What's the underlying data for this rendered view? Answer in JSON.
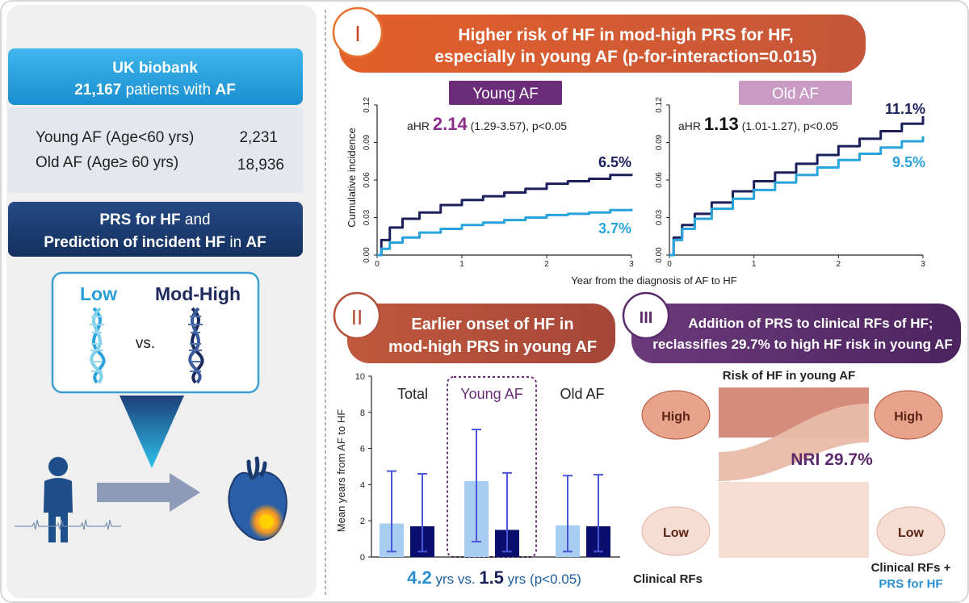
{
  "left": {
    "cohort_line1": "UK biobank",
    "cohort_count": "21,167",
    "cohort_mid": " patients with ",
    "cohort_af": "AF",
    "young_label": "Young AF (Age<60 yrs)",
    "young_n": "2,231",
    "old_label": "Old AF (Age≥ 60 yrs)",
    "old_n": "18,936",
    "prs_title_a": "PRS for HF",
    "prs_title_b": " and",
    "prs_title2_a": "Prediction of incident HF",
    "prs_title2_b": " in ",
    "prs_title2_c": "AF",
    "low": "Low",
    "modhigh": "Mod-High",
    "vs": "vs."
  },
  "section1": {
    "badge": "I",
    "title_line1": "Higher risk of HF in mod-high PRS for HF,",
    "title_line2": "especially in young AF (p-for-interaction=0.015)",
    "young_tag": "Young AF",
    "old_tag": "Old AF",
    "young_ahr_prefix": "aHR ",
    "young_ahr": "2.14",
    "young_ahr_ci": " (1.29-3.57), p<0.05",
    "old_ahr_prefix": "aHR ",
    "old_ahr": "1.13",
    "old_ahr_ci": " (1.01-1.27), p<0.05",
    "young_high_pct": "6.5%",
    "young_low_pct": "3.7%",
    "old_high_pct": "11.1%",
    "old_low_pct": "9.5%",
    "ylabel": "Cumulative incidence",
    "xlabel": "Year from the diagnosis of AF to HF"
  },
  "section2": {
    "badge": "II",
    "title_line1": "Earlier onset of HF in",
    "title_line2": "mod-high PRS in young AF",
    "group_total": "Total",
    "group_young": "Young AF",
    "group_old": "Old AF",
    "ylabel": "Mean years from AF to HF",
    "result_a": "4.2",
    "result_b": " yrs vs. ",
    "result_c": "1.5",
    "result_d": " yrs (p<0.05)"
  },
  "section3": {
    "badge": "III",
    "title_line1": "Addition of PRS to clinical RFs of HF;",
    "title_line2": "reclassifies 29.7% to high HF risk in young AF",
    "risk_title": "Risk of HF in young AF",
    "high": "High",
    "low": "Low",
    "nri": "NRI 29.7%",
    "left_label": "Clinical RFs",
    "right_label1": "Clinical RFs +",
    "right_label2": "PRS for HF"
  },
  "chart_data": [
    {
      "type": "line",
      "title": "Young AF",
      "xlabel": "Year from the diagnosis of AF to HF",
      "ylabel": "Cumulative incidence",
      "xlim": [
        0,
        3
      ],
      "ylim": [
        0,
        0.12
      ],
      "xticks": [
        "0",
        "1",
        "2",
        "3"
      ],
      "yticks": [
        "0.00",
        "0.03",
        "0.06",
        "0.09",
        "0.12"
      ],
      "series": [
        {
          "name": "Mod-High PRS",
          "color": "#1b1f5c",
          "x": [
            0,
            0.05,
            0.15,
            0.3,
            0.5,
            0.75,
            1.0,
            1.25,
            1.5,
            1.75,
            2.0,
            2.25,
            2.5,
            2.75,
            3.0
          ],
          "y": [
            0,
            0.012,
            0.022,
            0.029,
            0.034,
            0.04,
            0.044,
            0.047,
            0.05,
            0.053,
            0.057,
            0.059,
            0.061,
            0.064,
            0.065
          ]
        },
        {
          "name": "Low PRS",
          "color": "#29a3dc",
          "x": [
            0,
            0.05,
            0.15,
            0.3,
            0.5,
            0.75,
            1.0,
            1.25,
            1.5,
            1.75,
            2.0,
            2.25,
            2.5,
            2.75,
            3.0
          ],
          "y": [
            0,
            0.005,
            0.01,
            0.014,
            0.018,
            0.021,
            0.024,
            0.026,
            0.028,
            0.03,
            0.032,
            0.033,
            0.034,
            0.036,
            0.037
          ]
        }
      ]
    },
    {
      "type": "line",
      "title": "Old AF",
      "xlabel": "Year from the diagnosis of AF to HF",
      "ylabel": "Cumulative incidence",
      "xlim": [
        0,
        3
      ],
      "ylim": [
        0,
        0.12
      ],
      "xticks": [
        "0",
        "1",
        "2",
        "3"
      ],
      "yticks": [
        "0.00",
        "0.03",
        "0.06",
        "0.09",
        "0.12"
      ],
      "series": [
        {
          "name": "Mod-High PRS",
          "color": "#1b1f5c",
          "x": [
            0,
            0.05,
            0.15,
            0.3,
            0.5,
            0.75,
            1.0,
            1.25,
            1.5,
            1.75,
            2.0,
            2.25,
            2.5,
            2.75,
            3.0
          ],
          "y": [
            0,
            0.014,
            0.024,
            0.033,
            0.042,
            0.051,
            0.059,
            0.066,
            0.073,
            0.08,
            0.087,
            0.093,
            0.099,
            0.105,
            0.111
          ]
        },
        {
          "name": "Low PRS",
          "color": "#29a3dc",
          "x": [
            0,
            0.05,
            0.15,
            0.3,
            0.5,
            0.75,
            1.0,
            1.25,
            1.5,
            1.75,
            2.0,
            2.25,
            2.5,
            2.75,
            3.0
          ],
          "y": [
            0,
            0.012,
            0.021,
            0.029,
            0.037,
            0.045,
            0.052,
            0.058,
            0.064,
            0.07,
            0.076,
            0.081,
            0.086,
            0.091,
            0.095
          ]
        }
      ]
    },
    {
      "type": "bar",
      "title": "Mean years from AF to HF",
      "ylabel": "Mean years from AF to HF",
      "ylim": [
        0,
        10
      ],
      "yticks": [
        "0",
        "2",
        "4",
        "6",
        "8",
        "10"
      ],
      "categories": [
        "Total",
        "Young AF",
        "Old AF"
      ],
      "series": [
        {
          "name": "Low PRS",
          "color": "#a8cdf2",
          "values": [
            1.85,
            4.2,
            1.75
          ],
          "err_low": [
            0.3,
            0.85,
            0.3
          ],
          "err_high": [
            4.75,
            7.05,
            4.5
          ]
        },
        {
          "name": "Mod-High PRS",
          "color": "#0a0f6e",
          "values": [
            1.7,
            1.5,
            1.7
          ],
          "err_low": [
            0.3,
            0.3,
            0.3
          ],
          "err_high": [
            4.6,
            4.65,
            4.55
          ]
        }
      ]
    }
  ],
  "colors": {
    "cyan": "#2ba3df",
    "navy": "#1e3a6e",
    "orange": "#e8722f",
    "brown": "#b5503a",
    "purple": "#5b2a6b",
    "young_tag": "#6b2d7a",
    "old_tag": "#c89ac2"
  }
}
